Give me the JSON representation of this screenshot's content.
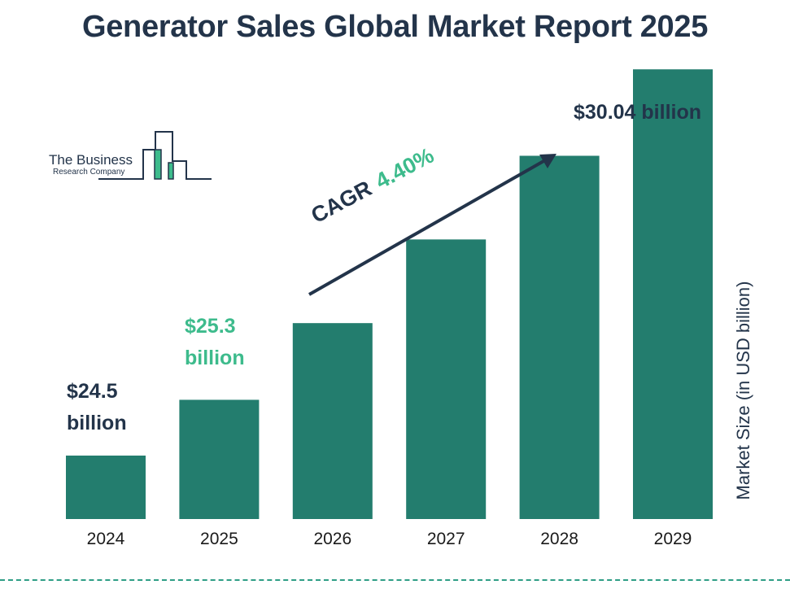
{
  "title": "Generator Sales Global Market Report 2025",
  "logo": {
    "name": "The Business",
    "sub": "Research Company"
  },
  "cagr": {
    "label": "CAGR",
    "value": "4.40%"
  },
  "ylabel": "Market Size (in USD billion)",
  "colors": {
    "bar": "#237d6e",
    "title": "#23344a",
    "accent": "#3dbb8c"
  },
  "bar_labels": [
    {
      "line1": "$24.5",
      "line2": "billion"
    },
    {
      "line1": "$25.3",
      "line2": "billion"
    },
    {
      "line1": "$30.04 billion"
    }
  ],
  "chart_data": {
    "type": "bar",
    "title": "Generator Sales Global Market Report 2025",
    "ylabel": "Market Size (in USD billion)",
    "categories": [
      "2024",
      "2025",
      "2026",
      "2027",
      "2028",
      "2029"
    ],
    "values": [
      24.5,
      25.3,
      26.4,
      27.6,
      28.8,
      30.04
    ],
    "grid": false,
    "legend": "none"
  }
}
